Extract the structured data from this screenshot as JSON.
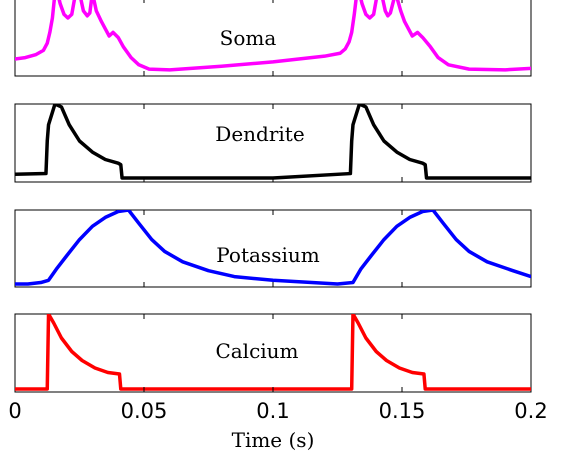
{
  "chart_data": {
    "type": "line",
    "xlabel": "Time (s)",
    "xlim": [
      0,
      0.2
    ],
    "xticks": [
      0,
      0.05,
      0.1,
      0.15,
      0.2
    ],
    "xtick_labels": [
      "0",
      "0.05",
      "0.1",
      "0.15",
      "0.2"
    ],
    "grid": false,
    "panels": [
      {
        "name": "Soma",
        "color": "#ff00ff",
        "ylim": [
          0,
          1
        ],
        "x": [
          0,
          0.004,
          0.008,
          0.011,
          0.0125,
          0.0135,
          0.0145,
          0.0155,
          0.0165,
          0.0175,
          0.019,
          0.0205,
          0.022,
          0.0235,
          0.025,
          0.0265,
          0.028,
          0.029,
          0.03,
          0.0315,
          0.0335,
          0.035,
          0.0365,
          0.038,
          0.04,
          0.042,
          0.045,
          0.048,
          0.052,
          0.06,
          0.08,
          0.1,
          0.12,
          0.126,
          0.128,
          0.1295,
          0.1305,
          0.1315,
          0.1325,
          0.1335,
          0.1345,
          0.136,
          0.1375,
          0.139,
          0.1405,
          0.142,
          0.1435,
          0.1445,
          0.1455,
          0.1475,
          0.1495,
          0.151,
          0.1525,
          0.154,
          0.156,
          0.158,
          0.161,
          0.164,
          0.168,
          0.176,
          0.19,
          0.2
        ],
        "y": [
          0.18,
          0.2,
          0.24,
          0.3,
          0.4,
          0.55,
          0.75,
          1.1,
          1.1,
          0.95,
          0.8,
          0.75,
          0.8,
          1.1,
          1.1,
          0.85,
          0.78,
          0.82,
          1.1,
          0.85,
          0.7,
          0.6,
          0.5,
          0.55,
          0.48,
          0.35,
          0.2,
          0.1,
          0.04,
          0.03,
          0.08,
          0.14,
          0.22,
          0.26,
          0.32,
          0.42,
          0.55,
          0.8,
          1.1,
          1.1,
          0.95,
          0.8,
          0.75,
          0.8,
          1.1,
          1.1,
          0.85,
          0.78,
          0.82,
          1.1,
          0.85,
          0.7,
          0.6,
          0.5,
          0.55,
          0.48,
          0.35,
          0.2,
          0.1,
          0.04,
          0.03,
          0.05
        ]
      },
      {
        "name": "Dendrite",
        "color": "#000000",
        "ylim": [
          0,
          1
        ],
        "x": [
          0,
          0.012,
          0.0125,
          0.013,
          0.0155,
          0.018,
          0.021,
          0.025,
          0.03,
          0.035,
          0.04,
          0.041,
          0.0415,
          0.06,
          0.1,
          0.13,
          0.1305,
          0.131,
          0.1335,
          0.136,
          0.139,
          0.143,
          0.148,
          0.153,
          0.158,
          0.159,
          0.1595,
          0.2
        ],
        "y": [
          0.05,
          0.06,
          0.5,
          0.72,
          1.0,
          0.96,
          0.72,
          0.5,
          0.35,
          0.25,
          0.2,
          0.18,
          0.0,
          0.0,
          0.0,
          0.06,
          0.5,
          0.72,
          1.0,
          0.96,
          0.72,
          0.5,
          0.35,
          0.25,
          0.2,
          0.18,
          0.0,
          0.0
        ]
      },
      {
        "name": "Potassium",
        "color": "#0000ff",
        "ylim": [
          0,
          1
        ],
        "x": [
          0,
          0.005,
          0.01,
          0.013,
          0.016,
          0.02,
          0.025,
          0.03,
          0.035,
          0.04,
          0.044,
          0.048,
          0.053,
          0.058,
          0.065,
          0.075,
          0.085,
          0.1,
          0.115,
          0.125,
          0.131,
          0.134,
          0.138,
          0.143,
          0.148,
          0.153,
          0.158,
          0.162,
          0.166,
          0.171,
          0.176,
          0.183,
          0.193,
          0.2
        ],
        "y": [
          0.0,
          0.0,
          0.02,
          0.05,
          0.2,
          0.38,
          0.6,
          0.78,
          0.9,
          0.98,
          1.0,
          0.82,
          0.6,
          0.44,
          0.3,
          0.18,
          0.1,
          0.05,
          0.02,
          0.0,
          0.02,
          0.2,
          0.38,
          0.6,
          0.78,
          0.9,
          0.98,
          1.0,
          0.82,
          0.6,
          0.44,
          0.3,
          0.18,
          0.1
        ]
      },
      {
        "name": "Calcium",
        "color": "#ff0000",
        "ylim": [
          0,
          1
        ],
        "x": [
          0,
          0.0115,
          0.0125,
          0.013,
          0.015,
          0.018,
          0.022,
          0.026,
          0.031,
          0.036,
          0.0405,
          0.041,
          0.06,
          0.1,
          0.1295,
          0.1305,
          0.131,
          0.133,
          0.136,
          0.14,
          0.144,
          0.149,
          0.154,
          0.1585,
          0.159,
          0.2
        ],
        "y": [
          0.0,
          0.0,
          0.0,
          1.0,
          0.88,
          0.68,
          0.5,
          0.38,
          0.28,
          0.22,
          0.2,
          0.0,
          0.0,
          0.0,
          0.0,
          0.0,
          1.0,
          0.88,
          0.68,
          0.5,
          0.38,
          0.28,
          0.22,
          0.2,
          0.0,
          0.0
        ]
      }
    ]
  }
}
